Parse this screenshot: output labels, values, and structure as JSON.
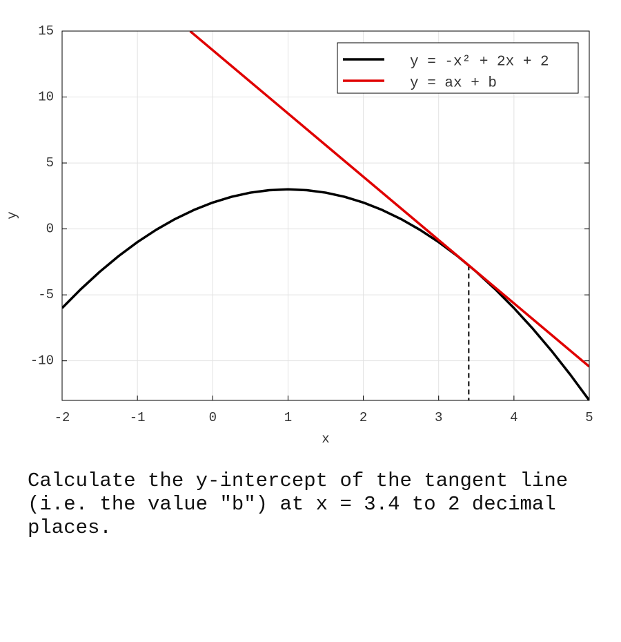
{
  "chart_data": {
    "type": "line",
    "xlabel": "x",
    "ylabel": "y",
    "xlim": [
      -2,
      5
    ],
    "ylim": [
      -13,
      15
    ],
    "xticks": [
      -2,
      -1,
      0,
      1,
      2,
      3,
      4,
      5
    ],
    "yticks": [
      -10,
      -5,
      0,
      5,
      10,
      15
    ],
    "grid": true,
    "legend": "upper right",
    "series": [
      {
        "name": "y = -x² + 2x + 2",
        "color": "#000000",
        "x": [
          -2,
          -1.75,
          -1.5,
          -1.25,
          -1,
          -0.75,
          -0.5,
          -0.25,
          0,
          0.25,
          0.5,
          0.75,
          1,
          1.25,
          1.5,
          1.75,
          2,
          2.25,
          2.5,
          2.75,
          3,
          3.25,
          3.5,
          3.75,
          4,
          4.25,
          4.5,
          4.75,
          5
        ],
        "values": [
          -6,
          -4.5625,
          -3.25,
          -2.0625,
          -1,
          -0.0625,
          0.75,
          1.4375,
          2,
          2.4375,
          2.75,
          2.9375,
          3,
          2.9375,
          2.75,
          2.4375,
          2,
          1.4375,
          0.75,
          -0.0625,
          -1,
          -2.0625,
          -3.25,
          -4.5625,
          -6,
          -7.5625,
          -9.25,
          -11.0625,
          -13
        ]
      },
      {
        "name": "y = ax + b",
        "color": "#e00000",
        "x": [
          -0.3,
          5
        ],
        "values": [
          14.99,
          -10.44
        ]
      }
    ],
    "tangent_point": {
      "x": 3.4,
      "y": -2.76
    }
  },
  "question": "Calculate the y-intercept of the tangent line (i.e. the value \"b\") at x = 3.4 to 2 decimal places."
}
